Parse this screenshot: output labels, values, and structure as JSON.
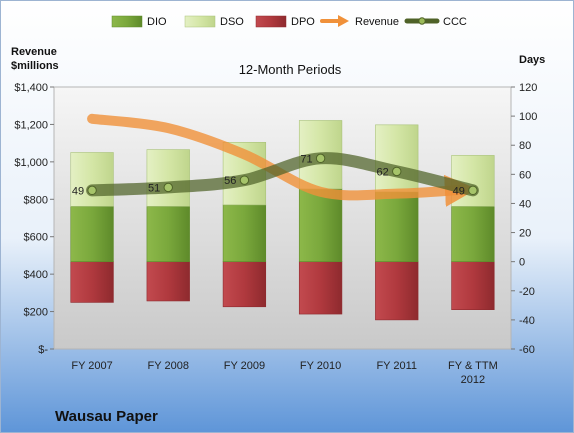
{
  "chart_data": {
    "type": "bar",
    "title": "12-Month Periods",
    "company": "Wausau Paper",
    "left_axis_label": [
      "Revenue",
      "$millions"
    ],
    "right_axis_label": "Days",
    "categories": [
      [
        "FY 2007"
      ],
      [
        "FY 2008"
      ],
      [
        "FY 2009"
      ],
      [
        "FY 2010"
      ],
      [
        "FY 2011"
      ],
      [
        "FY & TTM",
        "2012"
      ]
    ],
    "left_axis": {
      "min": 0,
      "max": 1400,
      "step": 200,
      "tick_labels": [
        "$-",
        "$200",
        "$400",
        "$600",
        "$800",
        "$1,000",
        "$1,200",
        "$1,400"
      ]
    },
    "right_axis": {
      "min": -60,
      "max": 120,
      "step": 20,
      "tick_labels": [
        "-60",
        "-40",
        "-20",
        "0",
        "20",
        "40",
        "60",
        "80",
        "100",
        "120"
      ]
    },
    "series": [
      {
        "name": "DIO",
        "axis": "days",
        "color": "#77A33C",
        "values": [
          38,
          38,
          39,
          50,
          48,
          38
        ]
      },
      {
        "name": "DSO",
        "axis": "days",
        "color": "#D7E7B0",
        "values": [
          37,
          39,
          43,
          47,
          46,
          35
        ]
      },
      {
        "name": "DPO",
        "axis": "days",
        "color": "#B2383D",
        "values": [
          -28,
          -27,
          -31,
          -36,
          -40,
          -33
        ]
      },
      {
        "name": "Revenue",
        "axis": "revenue",
        "color": "#F0913A",
        "values": [
          1230,
          1180,
          1040,
          840,
          830,
          850
        ]
      },
      {
        "name": "CCC",
        "axis": "days",
        "color": "#4F6228",
        "values": [
          49,
          51,
          56,
          71,
          62,
          49
        ]
      }
    ],
    "ccc_labels": [
      "49",
      "51",
      "56",
      "71",
      "62",
      "49"
    ],
    "legend_position": "top",
    "grid": false
  }
}
